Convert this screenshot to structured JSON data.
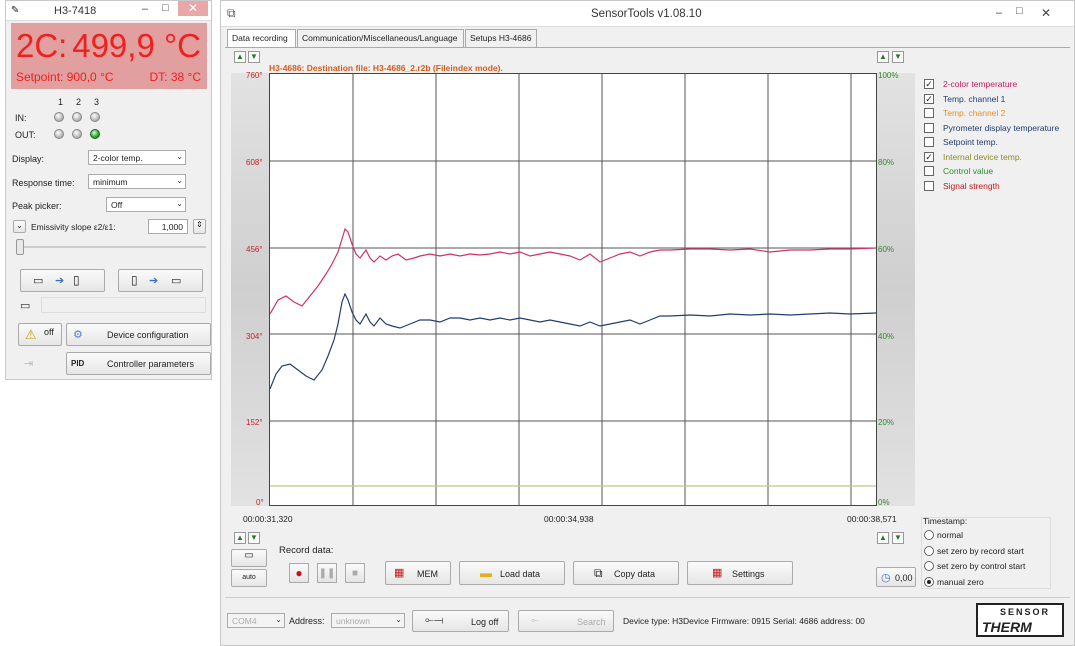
{
  "left": {
    "title": "H3-7418",
    "mode": "2C:",
    "temperature": "499,9 °C",
    "setpoint": "Setpoint:  900,0 °C",
    "dt": "DT:  38 °C",
    "io_cols": [
      "1",
      "2",
      "3"
    ],
    "in_label": "IN:",
    "out_label": "OUT:",
    "display_label": "Display:",
    "display_value": "2-color temp.",
    "response_label": "Response time:",
    "response_value": "minimum",
    "peak_label": "Peak picker:",
    "peak_value": "Off",
    "emissivity_label": "Emissivity slope ε2/ε1:",
    "emissivity_value": "1,000",
    "off_label": "off",
    "device_config": "Device configuration",
    "controller_params": "Controller parameters",
    "pid_label": "PID"
  },
  "main": {
    "title": "SensorTools v1.08.10",
    "tabs": [
      "Data recording",
      "Communication/Miscellaneous/Language",
      "Setups H3-4686"
    ],
    "plot_header": "H3-4686: Destination file: H3-4686_2.r2b (Fileindex mode).",
    "left_ticks": [
      "760°",
      "608°",
      "456°",
      "304°",
      "152°",
      "0°"
    ],
    "right_ticks": [
      "100%",
      "80%",
      "60%",
      "40%",
      "20%",
      "0%"
    ],
    "time_labels": [
      "00:00:31,320",
      "00:00:34,938",
      "00:00:38,571"
    ],
    "record_label": "Record data:",
    "auto_label": "auto",
    "buttons": {
      "mem": "MEM",
      "load": "Load data",
      "copy": "Copy data",
      "settings": "Settings"
    },
    "counter": "0,00",
    "channels": [
      {
        "label": "2-color temperature",
        "checked": true,
        "color": "#c8195e"
      },
      {
        "label": "Temp. channel 1",
        "checked": true,
        "color": "#1f3d73"
      },
      {
        "label": "Temp. channel 2",
        "checked": false,
        "color": "#e8902a"
      },
      {
        "label": "Pyrometer display temperature",
        "checked": false,
        "color": "#1f3d73"
      },
      {
        "label": "Setpoint temp.",
        "checked": false,
        "color": "#1f3d73"
      },
      {
        "label": "Internal device temp.",
        "checked": true,
        "color": "#8a8a2a"
      },
      {
        "label": "Control value",
        "checked": false,
        "color": "#2f8a2f"
      },
      {
        "label": "Signal strength",
        "checked": false,
        "color": "#c01818"
      }
    ],
    "timestamp_label": "Timestamp:",
    "timestamp_options": [
      {
        "label": "normal",
        "selected": false
      },
      {
        "label": "set zero by record start",
        "selected": false
      },
      {
        "label": "set zero by control start",
        "selected": false
      },
      {
        "label": "manual zero",
        "selected": true
      }
    ],
    "status": {
      "port": "COM4",
      "address_label": "Address:",
      "address_value": "unknown",
      "logoff": "Log off",
      "search": "Search",
      "device_info": "Device type: H3Device Firmware: 0915 Serial: 4686 address: 00",
      "logo_top": "SENSOR",
      "logo_bottom": "THERM"
    }
  }
}
